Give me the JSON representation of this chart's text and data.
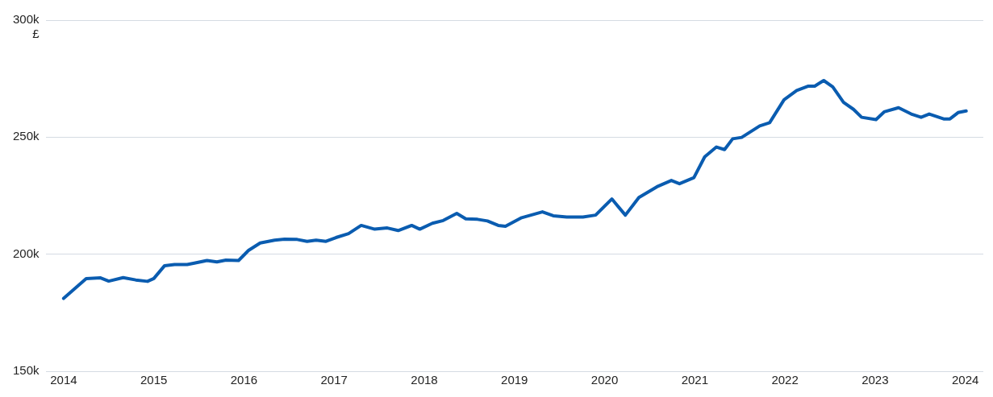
{
  "chart_data": {
    "type": "line",
    "ylabel": "£",
    "x": [
      2014.0,
      2014.25,
      2014.41,
      2014.5,
      2014.66,
      2014.8,
      2014.93,
      2015.0,
      2015.12,
      2015.23,
      2015.37,
      2015.45,
      2015.59,
      2015.7,
      2015.8,
      2015.94,
      2016.05,
      2016.18,
      2016.34,
      2016.45,
      2016.59,
      2016.7,
      2016.8,
      2016.91,
      2017.02,
      2017.16,
      2017.3,
      2017.45,
      2017.59,
      2017.71,
      2017.86,
      2017.95,
      2018.09,
      2018.21,
      2018.36,
      2018.46,
      2018.59,
      2018.7,
      2018.82,
      2018.9,
      2019.08,
      2019.31,
      2019.43,
      2019.58,
      2019.76,
      2019.9,
      2020.08,
      2020.23,
      2020.38,
      2020.58,
      2020.74,
      2020.83,
      2020.99,
      2021.11,
      2021.24,
      2021.33,
      2021.42,
      2021.52,
      2021.72,
      2021.83,
      2021.99,
      2022.13,
      2022.26,
      2022.33,
      2022.43,
      2022.53,
      2022.65,
      2022.76,
      2022.85,
      2023.01,
      2023.1,
      2023.26,
      2023.4,
      2023.51,
      2023.6,
      2023.76,
      2023.83,
      2023.92,
      2024.01
    ],
    "series": [
      {
        "color": "#0a5cb0",
        "values": [
          181.1,
          189.6,
          189.9,
          188.5,
          190,
          189,
          188.4,
          189.6,
          195.1,
          195.6,
          195.6,
          196.2,
          197.3,
          196.7,
          197.5,
          197.3,
          201.6,
          204.8,
          206,
          206.4,
          206.3,
          205.5,
          206,
          205.5,
          207.1,
          208.8,
          212.3,
          210.7,
          211.2,
          210.1,
          212.3,
          210.7,
          213.2,
          214.4,
          217.4,
          215.1,
          214.9,
          214.2,
          212.3,
          211.9,
          215.6,
          218.1,
          216.4,
          215.9,
          215.9,
          216.7,
          223.6,
          216.7,
          224.2,
          228.8,
          231.5,
          230.1,
          232.7,
          241.6,
          245.8,
          244.7,
          249.3,
          249.9,
          254.8,
          256.2,
          266,
          269.9,
          271.8,
          271.8,
          274.2,
          271.5,
          264.9,
          261.9,
          258.5,
          257.5,
          260.8,
          262.6,
          259.9,
          258.5,
          259.9,
          257.8,
          257.8,
          260.5,
          261.2
        ]
      }
    ],
    "xlim": [
      2013.8,
      2024.2
    ],
    "xticks": [
      2014,
      2015,
      2016,
      2017,
      2018,
      2019,
      2020,
      2021,
      2022,
      2023,
      2024
    ],
    "ylim": [
      150,
      300
    ],
    "yticks": [
      {
        "value": 150,
        "label": "150k"
      },
      {
        "value": 200,
        "label": "200k"
      },
      {
        "value": 250,
        "label": "250k"
      },
      {
        "value": 300,
        "label": "300k"
      }
    ],
    "grid": "y",
    "legend": false,
    "marker": "none",
    "line_style": "solid"
  }
}
